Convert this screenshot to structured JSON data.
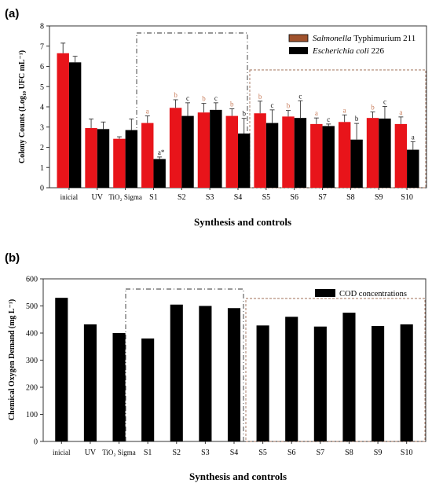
{
  "chart_data": [
    {
      "panel_label": "(a)",
      "type": "bar",
      "xlabel": "Synthesis and controls",
      "ylabel": "Colony Counts (Log₁₀ UFC mL⁻¹)",
      "ylim": [
        0,
        8
      ],
      "yticks": [
        "0",
        "1",
        "2",
        "3",
        "4",
        "5",
        "6",
        "7",
        "8"
      ],
      "categories": [
        "inicial",
        "UV",
        "TiO₂ Sigma",
        "S1",
        "S2",
        "S3",
        "S4",
        "S5",
        "S6",
        "S7",
        "S8",
        "S9",
        "S10"
      ],
      "series": [
        {
          "name": "Salmonella Typhimurium 211",
          "legend_italic": "Salmonella",
          "legend_plain": "Typhimurium 211",
          "color": "#e8141a",
          "values": [
            6.65,
            2.95,
            2.42,
            3.2,
            3.95,
            3.72,
            3.55,
            3.68,
            3.52,
            3.15,
            3.25,
            3.45,
            3.15
          ],
          "errors": [
            0.5,
            0.45,
            0.1,
            0.35,
            0.4,
            0.45,
            0.35,
            0.6,
            0.3,
            0.3,
            0.35,
            0.3,
            0.35
          ],
          "letters": [
            "",
            "",
            "",
            "a",
            "b",
            "b",
            "b",
            "b",
            "b",
            "a",
            "a",
            "b",
            "a"
          ]
        },
        {
          "name": "Escherichia coli 226",
          "legend_italic": "Escherichia coli",
          "legend_plain": "226",
          "color": "#000000",
          "values": [
            6.2,
            2.9,
            2.85,
            1.42,
            3.55,
            3.85,
            2.68,
            3.2,
            3.45,
            3.05,
            2.38,
            3.42,
            1.88
          ],
          "errors": [
            0.3,
            0.35,
            0.55,
            0.1,
            0.65,
            0.35,
            0.75,
            0.65,
            0.85,
            0.1,
            0.8,
            0.6,
            0.4
          ],
          "letters": [
            "",
            "",
            "",
            "a*",
            "c",
            "c",
            "b",
            "c",
            "c",
            "c",
            "b",
            "c",
            "a"
          ]
        }
      ],
      "legend_position": "top-right"
    },
    {
      "panel_label": "(b)",
      "type": "bar",
      "xlabel": "Synthesis and controls",
      "ylabel": "Chemical Oxygen Demand (mg L⁻¹)",
      "ylim": [
        0,
        600
      ],
      "yticks": [
        "0",
        "100",
        "200",
        "300",
        "400",
        "500",
        "600"
      ],
      "categories": [
        "inicial",
        "UV",
        "TiO₂ Sigma",
        "S1",
        "S2",
        "S3",
        "S4",
        "S5",
        "S6",
        "S7",
        "S8",
        "S9",
        "S10"
      ],
      "series": [
        {
          "name": "COD concentrations",
          "color": "#000000",
          "values": [
            530,
            432,
            400,
            380,
            505,
            500,
            492,
            428,
            460,
            424,
            475,
            426,
            432
          ]
        }
      ],
      "legend_position": "top-right"
    }
  ]
}
